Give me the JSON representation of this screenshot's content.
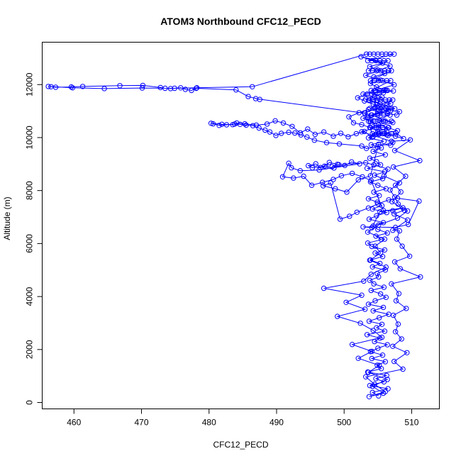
{
  "chart_data": {
    "type": "line",
    "title": "ATOM3 Northbound CFC12_PECD",
    "xlabel": "CFC12_PECD",
    "ylabel": "Altitude (m)",
    "xlim": [
      455.3,
      514.1
    ],
    "ylim": [
      -240,
      13600
    ],
    "xticks": [
      460,
      470,
      480,
      490,
      500,
      510
    ],
    "yticks": [
      0,
      2000,
      4000,
      6000,
      8000,
      10000,
      12000
    ],
    "series": [
      {
        "values_x": [
          505.1,
          504.2,
          506.5,
          503.8,
          505.9,
          504.7,
          506.3,
          503.5,
          505.5,
          504.9,
          506.1,
          504.1,
          505.7,
          503.9,
          505.0,
          506.4,
          504.5,
          505.3,
          503.4,
          506.0,
          504.8,
          505.6,
          503.7,
          505.2,
          506.6,
          504.3,
          505.8,
          503.6,
          504.6,
          506.2,
          505.4,
          504.0,
          505.9,
          504.4,
          503.8,
          505.1,
          504.9,
          506.1,
          504.2,
          505.3,
          503.9,
          505.7,
          504.6,
          506.0,
          504.1,
          503.5,
          505.5,
          504.7,
          506.4,
          505.0,
          504.3,
          505.8,
          503.7,
          504.8,
          506.3,
          504.2,
          505.6,
          504.9,
          503.6,
          505.2,
          504.4,
          506.2,
          505.0,
          503.9,
          505.7,
          504.5,
          506.0,
          503.4,
          505.4,
          504.8,
          503.8,
          506.1,
          504.3,
          505.5,
          504.0,
          505.9,
          503.6,
          504.7,
          506.3,
          505.1,
          504.2,
          505.8,
          503.5,
          504.9,
          506.5,
          504.6,
          505.3,
          503.7,
          505.6,
          504.1,
          506.2,
          504.8,
          503.9,
          505.4,
          504.4,
          506.0,
          505.0,
          503.8,
          505.7,
          504.6,
          502.5,
          506.8,
          503.2,
          507.4,
          502.8,
          506.9,
          503.0,
          507.2,
          502.6,
          507.0,
          509.8,
          507.5,
          511.2,
          507.3,
          509.1,
          507.6,
          508.4,
          507.1,
          508.9,
          507.4,
          509.4,
          507.2,
          508.2,
          507.8,
          508.6,
          509.7,
          507.5,
          508.3,
          511.3,
          507.0,
          508.1,
          507.7,
          509.2,
          507.3,
          508.0,
          507.6,
          508.5,
          507.2,
          509.3,
          507.4,
          508.7,
          503.2,
          504.5,
          506.1,
          503.7,
          505.8,
          504.2,
          506.4,
          503.6,
          505.2,
          502.1,
          504.1,
          501.2,
          505.6,
          504.3,
          502.4,
          499.0,
          503.1,
          500.3,
          502.6,
          497.0,
          502.9,
          504.0,
          506.2,
          503.8,
          505.4,
          504.6,
          506.0,
          503.5,
          505.1,
          507.9,
          509.4,
          508.0,
          507.5,
          506.8,
          508.2,
          505.9,
          506.5,
          504.4,
          503.2,
          499.2,
          498.5,
          497.3,
          496.5,
          495.8,
          494.7,
          495.3,
          497.1,
          497.8,
          499.0,
          498.2,
          500.1,
          501.1,
          502.3,
          496.3,
          493.5,
          492.2,
          491.8,
          490.9,
          492.5,
          494.0,
          495.2,
          496.8,
          498.4,
          499.6,
          501.2,
          502.7,
          504.0,
          505.8,
          507.2,
          508.7,
          505.3,
          504.1,
          502.8,
          507.6,
          509.5,
          511.1,
          507.9,
          506.6,
          505.0,
          503.6,
          501.9,
          500.8,
          499.4,
          498.0,
          496.9,
          498.7,
          500.4,
          502.1,
          503.9,
          505.1,
          506.9,
          507.2,
          504.9,
          503.3,
          502.6,
          499.3,
          497.4,
          495.6,
          494.5,
          493.6,
          492.7,
          491.8,
          490.7,
          489.9,
          489.0,
          488.3,
          487.4,
          486.5,
          485.5,
          484.6,
          483.8,
          482.6,
          481.5,
          480.6,
          480.3,
          481.9,
          483.5,
          484.1,
          485.3,
          487.0,
          488.6,
          489.8,
          491.0,
          492.3,
          493.5,
          494.6,
          495.7,
          497.0,
          498.4,
          499.5,
          500.6,
          501.8,
          503.0,
          504.1,
          505.2,
          506.5,
          507.7,
          508.8,
          507.6,
          506.3,
          505.0,
          503.8,
          502.6,
          501.4,
          500.7,
          502.2,
          503.6,
          505.0,
          506.4,
          507.8,
          508.2,
          506.9,
          505.6,
          504.3,
          503.0,
          502.0,
          503.4,
          504.7,
          506.0,
          507.3,
          505.8,
          504.5,
          503.2,
          504.8,
          506.3,
          507.5,
          505.3,
          504.0,
          502.8,
          503.9,
          505.1,
          506.5,
          507.9,
          505.7,
          504.3,
          503.1,
          486.9,
          487.5,
          485.8,
          484.0,
          478.1,
          477.4,
          476.5,
          475.8,
          474.3,
          473.5,
          472.8,
          470.2,
          466.8,
          461.3,
          459.6,
          457.3,
          456.6,
          456.2,
          459.8,
          464.5,
          470.1,
          474.9,
          478.2,
          486.4,
          503.3,
          503.8,
          504.4,
          505.0,
          505.6,
          506.2,
          506.8,
          507.4,
          503.5,
          504.1,
          504.7,
          505.3,
          505.9,
          506.5,
          503.6,
          504.2,
          504.8,
          505.4,
          506.0,
          506.6,
          507.0,
          503.9,
          504.5,
          505.1,
          505.7,
          506.3,
          506.9,
          504.0,
          504.6,
          505.2,
          505.8,
          506.4,
          503.7,
          504.3,
          504.9,
          505.5,
          506.1,
          506.7,
          507.2,
          503.8,
          504.6,
          505.4,
          506.2,
          507.0,
          504.1,
          505.0,
          505.9,
          506.8,
          503.6,
          504.4,
          505.3,
          506.1,
          507.0,
          503.9,
          504.8,
          505.7,
          506.6,
          504.2,
          505.1,
          506.0,
          507.0
        ],
        "values_y": [
          250,
          380,
          520,
          640,
          780,
          900,
          1020,
          1150,
          1280,
          1410,
          1540,
          1660,
          1790,
          1920,
          2050,
          2180,
          2300,
          2430,
          2560,
          2690,
          2820,
          2950,
          3070,
          3200,
          3330,
          3460,
          3590,
          3710,
          3840,
          3970,
          4100,
          4230,
          4350,
          4480,
          4610,
          4740,
          4870,
          5000,
          5120,
          5250,
          5380,
          5510,
          5640,
          5760,
          5890,
          6020,
          6150,
          6280,
          6400,
          6530,
          6660,
          6790,
          6920,
          7050,
          7170,
          7300,
          7430,
          7560,
          7690,
          7810,
          7940,
          8070,
          8200,
          8330,
          8450,
          8580,
          8710,
          8840,
          8970,
          9090,
          9220,
          9350,
          9480,
          9610,
          9730,
          9860,
          9990,
          10120,
          10250,
          10370,
          10500,
          10630,
          10760,
          10890,
          11010,
          11140,
          11270,
          11400,
          11530,
          11650,
          11780,
          11910,
          12040,
          12170,
          12290,
          12420,
          12550,
          12680,
          12810,
          12930,
          13050,
          12700,
          12350,
          11990,
          11640,
          11280,
          10930,
          10570,
          10220,
          9860,
          9910,
          9510,
          9130,
          8890,
          8540,
          8200,
          7950,
          7580,
          7260,
          7120,
          6890,
          6500,
          6480,
          6170,
          5900,
          5520,
          5310,
          5050,
          4740,
          4480,
          4110,
          3840,
          3550,
          3290,
          2960,
          2670,
          2400,
          2120,
          1880,
          1550,
          1260,
          970,
          690,
          410,
          220,
          350,
          610,
          870,
          1140,
          1400,
          1670,
          1930,
          2190,
          2460,
          2720,
          2990,
          3250,
          3520,
          3780,
          4050,
          4310,
          4580,
          4840,
          5110,
          5370,
          5640,
          5900,
          6170,
          6430,
          6700,
          6960,
          7230,
          7490,
          7760,
          8020,
          8290,
          8550,
          8810,
          8970,
          9050,
          8980,
          8850,
          8900,
          8870,
          9010,
          8940,
          8860,
          8920,
          9060,
          8990,
          8900,
          8950,
          9080,
          9010,
          8780,
          8750,
          8860,
          9030,
          8520,
          8470,
          8540,
          8200,
          8310,
          8420,
          8560,
          8650,
          8520,
          8380,
          7250,
          7240,
          7350,
          7200,
          6600,
          6630,
          6610,
          6720,
          7600,
          7710,
          7650,
          7500,
          7340,
          7180,
          7030,
          6920,
          8290,
          8180,
          8070,
          7940,
          8400,
          8560,
          9750,
          9710,
          9820,
          9650,
          9590,
          9680,
          9760,
          9810,
          9900,
          10020,
          10100,
          10170,
          10200,
          10160,
          10080,
          10210,
          10280,
          10360,
          10450,
          10470,
          10500,
          10510,
          10480,
          10460,
          10520,
          10540,
          10500,
          10490,
          10550,
          10520,
          10470,
          10510,
          10630,
          10550,
          10420,
          10180,
          10320,
          10120,
          10210,
          10050,
          10160,
          10030,
          10150,
          10230,
          10010,
          10130,
          10080,
          10170,
          9960,
          10050,
          10110,
          10240,
          10380,
          10490,
          10560,
          10780,
          10940,
          11060,
          10990,
          10900,
          10850,
          10980,
          11020,
          11140,
          11260,
          11380,
          11500,
          11640,
          11720,
          11800,
          11760,
          11690,
          11570,
          11450,
          11330,
          11210,
          11090,
          10970,
          10850,
          10730,
          10610,
          10490,
          10370,
          10260,
          10150,
          10040,
          10920,
          11470,
          11440,
          11550,
          11800,
          11860,
          11780,
          11820,
          11880,
          11850,
          11860,
          11890,
          11970,
          11960,
          11930,
          11910,
          11900,
          11920,
          11930,
          11880,
          11850,
          11870,
          11860,
          11880,
          11920,
          13150,
          13150,
          13150,
          13150,
          13150,
          13150,
          13150,
          13150,
          12900,
          12900,
          12900,
          12900,
          12900,
          12900,
          12520,
          12520,
          12520,
          12520,
          12520,
          12520,
          12520,
          12150,
          12150,
          12150,
          12150,
          12150,
          12150,
          11780,
          11780,
          11780,
          11780,
          11780,
          11420,
          11420,
          11420,
          11420,
          11420,
          11420,
          11420,
          11100,
          11100,
          11100,
          11100,
          11100,
          10850,
          10850,
          10850,
          10850,
          10620,
          10620,
          10620,
          10620,
          10620,
          10380,
          10380,
          10380,
          10380,
          10150,
          10150,
          10150,
          10150
        ]
      }
    ]
  }
}
